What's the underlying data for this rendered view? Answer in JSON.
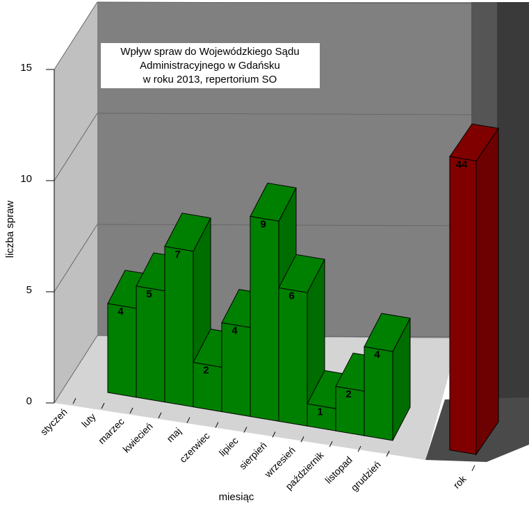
{
  "chart_data": {
    "type": "bar3d",
    "title": [
      "Wpływ spraw do Wojewódzkiego Sądu",
      "Administracyjnego w Gdańsku",
      "w roku 2013, repertorium SO"
    ],
    "x_label": "miesiąc",
    "y_label": "liczba spraw",
    "categories": [
      "styczeń",
      "luty",
      "marzec",
      "kwiecień",
      "maj",
      "czerwiec",
      "lipiec",
      "sierpień",
      "wrzesień",
      "październik",
      "listopad",
      "grudzień",
      "rok"
    ],
    "series": [
      {
        "color": "#008000",
        "values": [
          null,
          null,
          4,
          5,
          7,
          2,
          4,
          9,
          6,
          1,
          2,
          4,
          null
        ]
      },
      {
        "color": "#800000",
        "axis": "y2",
        "values": [
          null,
          null,
          null,
          null,
          null,
          null,
          null,
          null,
          null,
          null,
          null,
          null,
          44
        ]
      }
    ],
    "ylim": [
      0,
      15
    ],
    "yticks": [
      0,
      5,
      10,
      15
    ],
    "y2lim": [
      0,
      50
    ],
    "grid": true
  }
}
